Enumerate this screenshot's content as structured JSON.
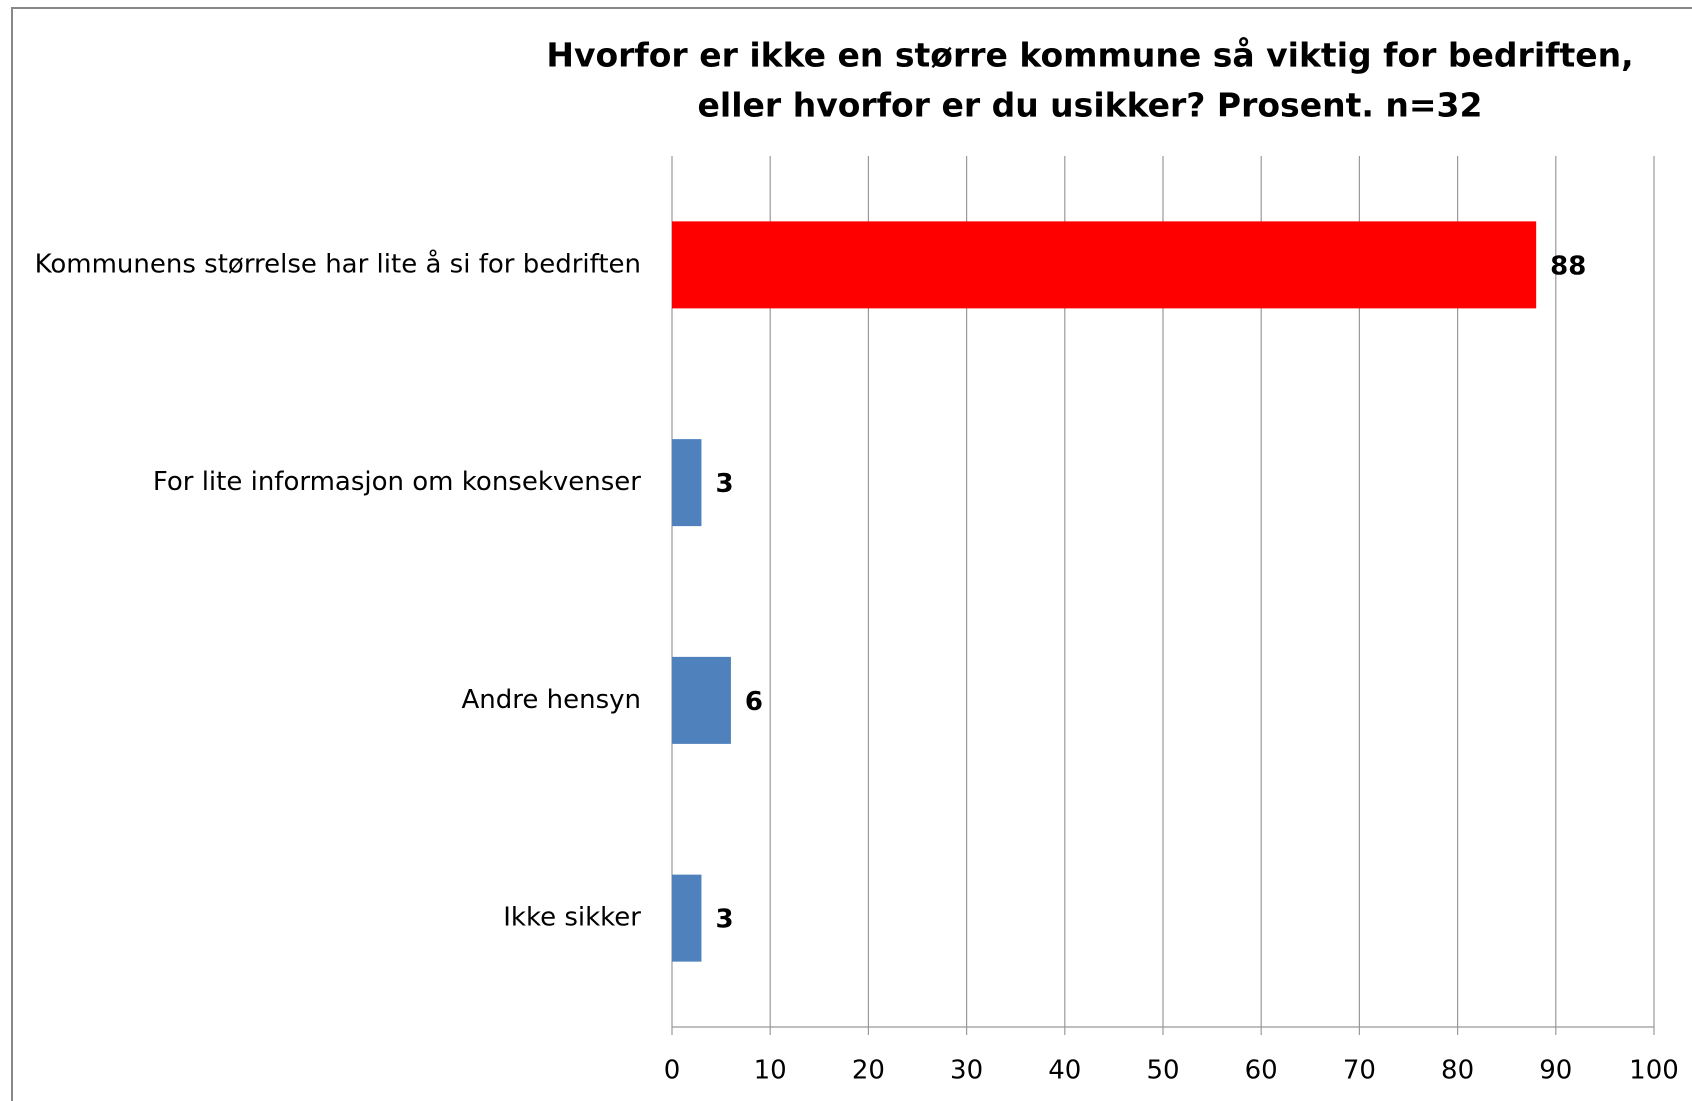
{
  "chart_data": {
    "type": "bar",
    "orientation": "horizontal",
    "title": [
      "Hvorfor  er ikke en større  kommune  så viktig for bedriften,",
      "eller hvorfor er du usikker? Prosent. n=32"
    ],
    "categories": [
      "Kommunens størrelse har lite å si for bedriften",
      "For lite informasjon om konsekvenser",
      "Andre hensyn",
      "Ikke sikker"
    ],
    "values": [
      88,
      3,
      6,
      3
    ],
    "colors": [
      "#ff0000",
      "#4f81bd",
      "#4f81bd",
      "#4f81bd"
    ],
    "xlim": [
      0,
      100
    ],
    "xticks": [
      0,
      10,
      20,
      30,
      40,
      50,
      60,
      70,
      80,
      90,
      100
    ],
    "grid": true
  }
}
